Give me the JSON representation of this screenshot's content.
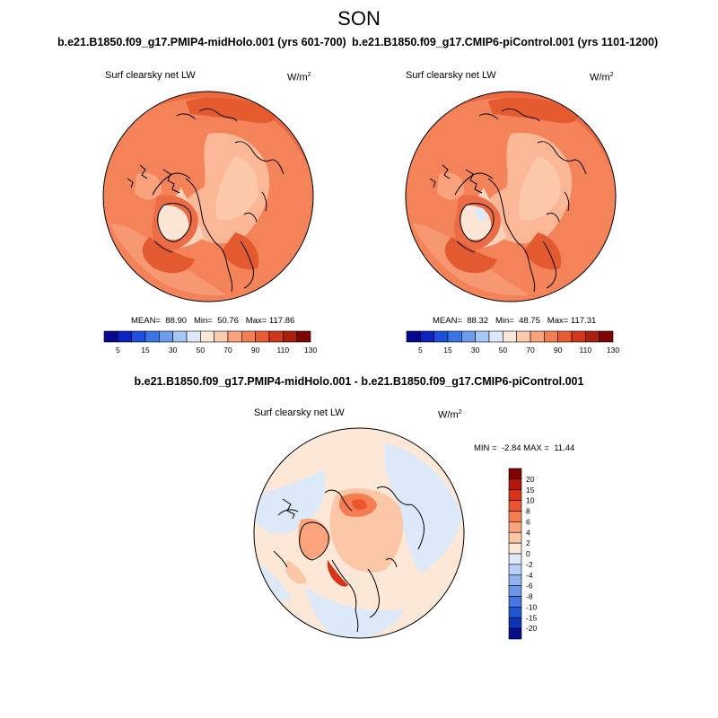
{
  "season": "SON",
  "panel_left": {
    "title": "b.e21.B1850.f09_g17.PMIP4-midHolo.001 (yrs 601-700)",
    "variable": "Surf clearsky net LW",
    "unit_base": "W/m",
    "unit_exp": "2",
    "stats": "MEAN=  88.90   Min=  50.76   Max= 117.86"
  },
  "panel_right": {
    "title": "b.e21.B1850.f09_g17.CMIP6-piControl.001 (yrs 1101-1200)",
    "variable": "Surf clearsky net LW",
    "unit_base": "W/m",
    "unit_exp": "2",
    "stats": "MEAN=  88.32   Min=  48.75   Max= 117.31"
  },
  "panel_diff": {
    "title": "b.e21.B1850.f09_g17.PMIP4-midHolo.001 - b.e21.B1850.f09_g17.CMIP6-piControl.001",
    "variable": "Surf clearsky net LW",
    "unit_base": "W/m",
    "unit_exp": "2",
    "stats": "MIN =  -2.84 MAX =  11.44"
  },
  "colorbar_abs": {
    "colors": [
      "#08088f",
      "#0a23c2",
      "#1b4fdc",
      "#3a74e6",
      "#6e9ced",
      "#a6c6f3",
      "#dbe9fa",
      "#fde8d8",
      "#fccbae",
      "#f9a47d",
      "#f47f55",
      "#ea5b33",
      "#d2371b",
      "#a9200d",
      "#7f0303"
    ],
    "labels": [
      "5",
      "15",
      "30",
      "50",
      "70",
      "90",
      "110",
      "130"
    ]
  },
  "colorbar_diff": {
    "colors": [
      "#7f0000",
      "#b5170b",
      "#d83218",
      "#ec5530",
      "#f67d52",
      "#faa37c",
      "#fcc7a6",
      "#fde7d6",
      "#dde9f9",
      "#b7d0f4",
      "#92b4ee",
      "#6d96e8",
      "#4676e2",
      "#2056d4",
      "#0d33b7",
      "#090e8c"
    ],
    "labels": [
      "20",
      "15",
      "10",
      "8",
      "6",
      "4",
      "2",
      "0",
      "-2",
      "-4",
      "-6",
      "-8",
      "-10",
      "-15",
      "-20"
    ]
  }
}
